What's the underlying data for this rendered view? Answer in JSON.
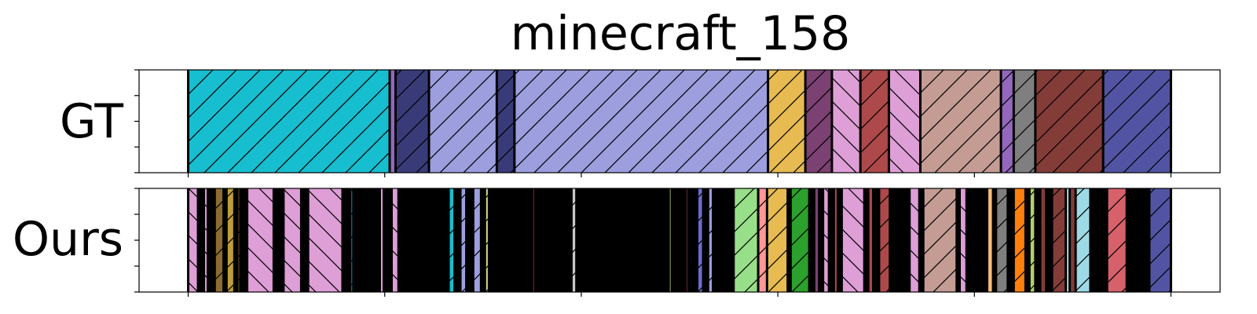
{
  "chart_data": {
    "type": "segmentation-timeline",
    "title": "minecraft_158",
    "x_range": [
      -0.05,
      1.05
    ],
    "tracks": [
      {
        "label": "GT",
        "segments": [
          {
            "start": 0.0,
            "end": 0.205,
            "color": "#17becf",
            "hatch": "/"
          },
          {
            "start": 0.205,
            "end": 0.211,
            "color": "#9467bd",
            "hatch": ""
          },
          {
            "start": 0.211,
            "end": 0.245,
            "color": "#393b79",
            "hatch": "/"
          },
          {
            "start": 0.245,
            "end": 0.314,
            "color": "#9c9ede",
            "hatch": "/"
          },
          {
            "start": 0.314,
            "end": 0.332,
            "color": "#393b79",
            "hatch": "/"
          },
          {
            "start": 0.332,
            "end": 0.59,
            "color": "#9c9ede",
            "hatch": "/"
          },
          {
            "start": 0.59,
            "end": 0.628,
            "color": "#e7ba52",
            "hatch": "/"
          },
          {
            "start": 0.628,
            "end": 0.655,
            "color": "#7b4173",
            "hatch": "/"
          },
          {
            "start": 0.655,
            "end": 0.684,
            "color": "#de9ed6",
            "hatch": "\\"
          },
          {
            "start": 0.684,
            "end": 0.713,
            "color": "#ad494a",
            "hatch": "/"
          },
          {
            "start": 0.713,
            "end": 0.745,
            "color": "#de9ed6",
            "hatch": "\\"
          },
          {
            "start": 0.745,
            "end": 0.827,
            "color": "#c49c94",
            "hatch": "/"
          },
          {
            "start": 0.827,
            "end": 0.84,
            "color": "#9467bd",
            "hatch": "/"
          },
          {
            "start": 0.84,
            "end": 0.862,
            "color": "#7f7f7f",
            "hatch": "/"
          },
          {
            "start": 0.862,
            "end": 0.931,
            "color": "#843c39",
            "hatch": "/"
          },
          {
            "start": 0.931,
            "end": 1.0,
            "color": "#5254a3",
            "hatch": "/"
          }
        ]
      },
      {
        "label": "Ours",
        "segments": [
          {
            "start": 0.0,
            "end": 0.01,
            "color": "#de9ed6",
            "hatch": "\\"
          },
          {
            "start": 0.01,
            "end": 0.016,
            "color": "#000000",
            "hatch": ""
          },
          {
            "start": 0.016,
            "end": 0.02,
            "color": "#de9ed6",
            "hatch": "\\"
          },
          {
            "start": 0.02,
            "end": 0.027,
            "color": "#000000",
            "hatch": ""
          },
          {
            "start": 0.027,
            "end": 0.036,
            "color": "#8c6d31",
            "hatch": "/"
          },
          {
            "start": 0.036,
            "end": 0.039,
            "color": "#000000",
            "hatch": ""
          },
          {
            "start": 0.039,
            "end": 0.047,
            "color": "#bd9e39",
            "hatch": "/"
          },
          {
            "start": 0.047,
            "end": 0.05,
            "color": "#000000",
            "hatch": ""
          },
          {
            "start": 0.05,
            "end": 0.053,
            "color": "#8c6d31",
            "hatch": "/"
          },
          {
            "start": 0.053,
            "end": 0.06,
            "color": "#000000",
            "hatch": ""
          },
          {
            "start": 0.06,
            "end": 0.087,
            "color": "#de9ed6",
            "hatch": "\\"
          },
          {
            "start": 0.087,
            "end": 0.097,
            "color": "#000000",
            "hatch": ""
          },
          {
            "start": 0.097,
            "end": 0.115,
            "color": "#de9ed6",
            "hatch": "\\"
          },
          {
            "start": 0.115,
            "end": 0.122,
            "color": "#000000",
            "hatch": ""
          },
          {
            "start": 0.122,
            "end": 0.157,
            "color": "#de9ed6",
            "hatch": "\\"
          },
          {
            "start": 0.157,
            "end": 0.165,
            "color": "#000000",
            "hatch": ""
          },
          {
            "start": 0.165,
            "end": 0.168,
            "color": "#17becf",
            "hatch": "/"
          },
          {
            "start": 0.168,
            "end": 0.195,
            "color": "#000000",
            "hatch": ""
          },
          {
            "start": 0.195,
            "end": 0.199,
            "color": "#de9ed6",
            "hatch": ""
          },
          {
            "start": 0.199,
            "end": 0.207,
            "color": "#000000",
            "hatch": ""
          },
          {
            "start": 0.207,
            "end": 0.214,
            "color": "#de9ed6",
            "hatch": "\\"
          },
          {
            "start": 0.214,
            "end": 0.265,
            "color": "#000000",
            "hatch": ""
          },
          {
            "start": 0.265,
            "end": 0.271,
            "color": "#17becf",
            "hatch": "/"
          },
          {
            "start": 0.271,
            "end": 0.277,
            "color": "#000000",
            "hatch": ""
          },
          {
            "start": 0.277,
            "end": 0.283,
            "color": "#9c9ede",
            "hatch": "/"
          },
          {
            "start": 0.283,
            "end": 0.29,
            "color": "#000000",
            "hatch": ""
          },
          {
            "start": 0.29,
            "end": 0.298,
            "color": "#9c9ede",
            "hatch": "/"
          },
          {
            "start": 0.298,
            "end": 0.302,
            "color": "#000000",
            "hatch": ""
          },
          {
            "start": 0.302,
            "end": 0.306,
            "color": "#dbdb8d",
            "hatch": "/"
          },
          {
            "start": 0.306,
            "end": 0.35,
            "color": "#000000",
            "hatch": ""
          },
          {
            "start": 0.35,
            "end": 0.353,
            "color": "#d62728",
            "hatch": ""
          },
          {
            "start": 0.353,
            "end": 0.39,
            "color": "#000000",
            "hatch": ""
          },
          {
            "start": 0.39,
            "end": 0.395,
            "color": "#c7c7c7",
            "hatch": "/"
          },
          {
            "start": 0.395,
            "end": 0.408,
            "color": "#000000",
            "hatch": ""
          },
          {
            "start": 0.408,
            "end": 0.41,
            "color": "#393b79",
            "hatch": ""
          },
          {
            "start": 0.41,
            "end": 0.489,
            "color": "#000000",
            "hatch": ""
          },
          {
            "start": 0.489,
            "end": 0.492,
            "color": "#dbdb8d",
            "hatch": ""
          },
          {
            "start": 0.492,
            "end": 0.506,
            "color": "#000000",
            "hatch": ""
          },
          {
            "start": 0.506,
            "end": 0.509,
            "color": "#843c39",
            "hatch": ""
          },
          {
            "start": 0.509,
            "end": 0.518,
            "color": "#000000",
            "hatch": ""
          },
          {
            "start": 0.518,
            "end": 0.524,
            "color": "#6b6ecf",
            "hatch": "/"
          },
          {
            "start": 0.524,
            "end": 0.529,
            "color": "#000000",
            "hatch": ""
          },
          {
            "start": 0.529,
            "end": 0.534,
            "color": "#9c9ede",
            "hatch": "/"
          },
          {
            "start": 0.534,
            "end": 0.555,
            "color": "#000000",
            "hatch": ""
          },
          {
            "start": 0.555,
            "end": 0.58,
            "color": "#98df8a",
            "hatch": "/"
          },
          {
            "start": 0.58,
            "end": 0.589,
            "color": "#ff9896",
            "hatch": "/"
          },
          {
            "start": 0.589,
            "end": 0.61,
            "color": "#e7ba52",
            "hatch": "/"
          },
          {
            "start": 0.61,
            "end": 0.613,
            "color": "#000000",
            "hatch": ""
          },
          {
            "start": 0.613,
            "end": 0.632,
            "color": "#2ca02c",
            "hatch": "/"
          },
          {
            "start": 0.632,
            "end": 0.637,
            "color": "#000000",
            "hatch": ""
          },
          {
            "start": 0.637,
            "end": 0.642,
            "color": "#7b4173",
            "hatch": ""
          },
          {
            "start": 0.642,
            "end": 0.646,
            "color": "#000000",
            "hatch": ""
          },
          {
            "start": 0.646,
            "end": 0.652,
            "color": "#de9ed6",
            "hatch": "\\"
          },
          {
            "start": 0.652,
            "end": 0.657,
            "color": "#000000",
            "hatch": ""
          },
          {
            "start": 0.657,
            "end": 0.661,
            "color": "#ad494a",
            "hatch": ""
          },
          {
            "start": 0.661,
            "end": 0.665,
            "color": "#000000",
            "hatch": ""
          },
          {
            "start": 0.665,
            "end": 0.688,
            "color": "#de9ed6",
            "hatch": "\\"
          },
          {
            "start": 0.688,
            "end": 0.692,
            "color": "#000000",
            "hatch": ""
          },
          {
            "start": 0.692,
            "end": 0.697,
            "color": "#ad494a",
            "hatch": ""
          },
          {
            "start": 0.697,
            "end": 0.703,
            "color": "#000000",
            "hatch": ""
          },
          {
            "start": 0.703,
            "end": 0.714,
            "color": "#ad494a",
            "hatch": "/"
          },
          {
            "start": 0.714,
            "end": 0.734,
            "color": "#000000",
            "hatch": ""
          },
          {
            "start": 0.734,
            "end": 0.744,
            "color": "#de9ed6",
            "hatch": "\\"
          },
          {
            "start": 0.744,
            "end": 0.748,
            "color": "#000000",
            "hatch": ""
          },
          {
            "start": 0.748,
            "end": 0.782,
            "color": "#c49c94",
            "hatch": "/"
          },
          {
            "start": 0.782,
            "end": 0.785,
            "color": "#000000",
            "hatch": ""
          },
          {
            "start": 0.785,
            "end": 0.792,
            "color": "#de9ed6",
            "hatch": "\\"
          },
          {
            "start": 0.792,
            "end": 0.813,
            "color": "#000000",
            "hatch": ""
          },
          {
            "start": 0.813,
            "end": 0.819,
            "color": "#ffbb78",
            "hatch": ""
          },
          {
            "start": 0.819,
            "end": 0.822,
            "color": "#000000",
            "hatch": ""
          },
          {
            "start": 0.822,
            "end": 0.834,
            "color": "#7f7f7f",
            "hatch": "/"
          },
          {
            "start": 0.834,
            "end": 0.84,
            "color": "#000000",
            "hatch": ""
          },
          {
            "start": 0.84,
            "end": 0.852,
            "color": "#ff7f0e",
            "hatch": "/"
          },
          {
            "start": 0.852,
            "end": 0.856,
            "color": "#000000",
            "hatch": ""
          },
          {
            "start": 0.856,
            "end": 0.862,
            "color": "#b5cf6b",
            "hatch": "/"
          },
          {
            "start": 0.862,
            "end": 0.867,
            "color": "#000000",
            "hatch": ""
          },
          {
            "start": 0.867,
            "end": 0.873,
            "color": "#843c39",
            "hatch": ""
          },
          {
            "start": 0.873,
            "end": 0.879,
            "color": "#000000",
            "hatch": ""
          },
          {
            "start": 0.879,
            "end": 0.893,
            "color": "#843c39",
            "hatch": "/"
          },
          {
            "start": 0.893,
            "end": 0.897,
            "color": "#9edae5",
            "hatch": ""
          },
          {
            "start": 0.897,
            "end": 0.903,
            "color": "#843c39",
            "hatch": ""
          },
          {
            "start": 0.903,
            "end": 0.918,
            "color": "#9edae5",
            "hatch": "/"
          },
          {
            "start": 0.918,
            "end": 0.935,
            "color": "#000000",
            "hatch": ""
          },
          {
            "start": 0.935,
            "end": 0.955,
            "color": "#d6616b",
            "hatch": "/"
          },
          {
            "start": 0.955,
            "end": 0.978,
            "color": "#000000",
            "hatch": ""
          },
          {
            "start": 0.978,
            "end": 1.0,
            "color": "#5254a3",
            "hatch": "/"
          }
        ]
      }
    ]
  }
}
